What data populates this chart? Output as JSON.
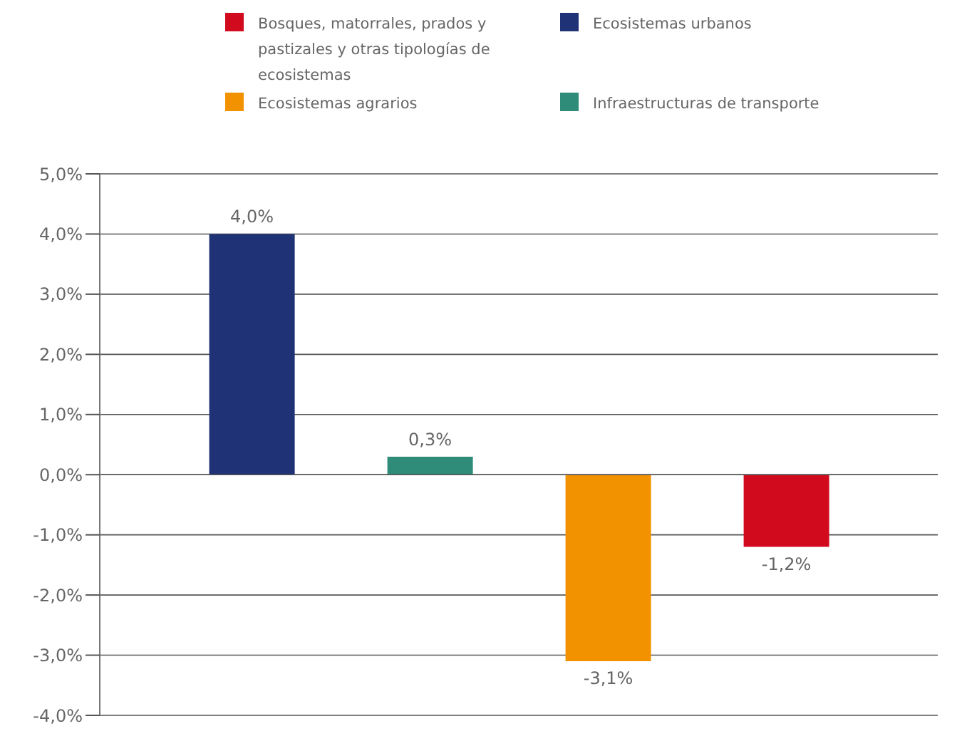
{
  "chart_data": {
    "type": "bar",
    "categories": [
      null
    ],
    "series": [
      {
        "name": "Ecosistemas urbanos",
        "color": "#1f3275",
        "values": [
          4.0
        ],
        "value_labels": [
          "4,0%"
        ]
      },
      {
        "name": "Infraestructuras de transporte",
        "color": "#2e8c78",
        "values": [
          0.3
        ],
        "value_labels": [
          "0,3%"
        ]
      },
      {
        "name": "Ecosistemas agrarios",
        "color": "#f39200",
        "values": [
          -3.1
        ],
        "value_labels": [
          "-3,1%"
        ]
      },
      {
        "name": "Bosques, matorrales, prados y pastizales y otras tipologías de ecosistemas",
        "color": "#d20a1e",
        "values": [
          -1.2
        ],
        "value_labels": [
          "-1,2%"
        ]
      }
    ],
    "ylim": [
      -4,
      5
    ],
    "yticks": [
      {
        "value": 5,
        "label": "5,0%"
      },
      {
        "value": 4,
        "label": "4,0%"
      },
      {
        "value": 3,
        "label": "3,0%"
      },
      {
        "value": 2,
        "label": "2,0%"
      },
      {
        "value": 1,
        "label": "1,0%"
      },
      {
        "value": 0,
        "label": "0,0%"
      },
      {
        "value": -1,
        "label": "-1,0%"
      },
      {
        "value": -2,
        "label": "-2,0%"
      },
      {
        "value": -3,
        "label": "-3,0%"
      },
      {
        "value": -4,
        "label": "-4,0%"
      }
    ],
    "tick_labels": "y",
    "grid": "y",
    "legend": "top"
  }
}
